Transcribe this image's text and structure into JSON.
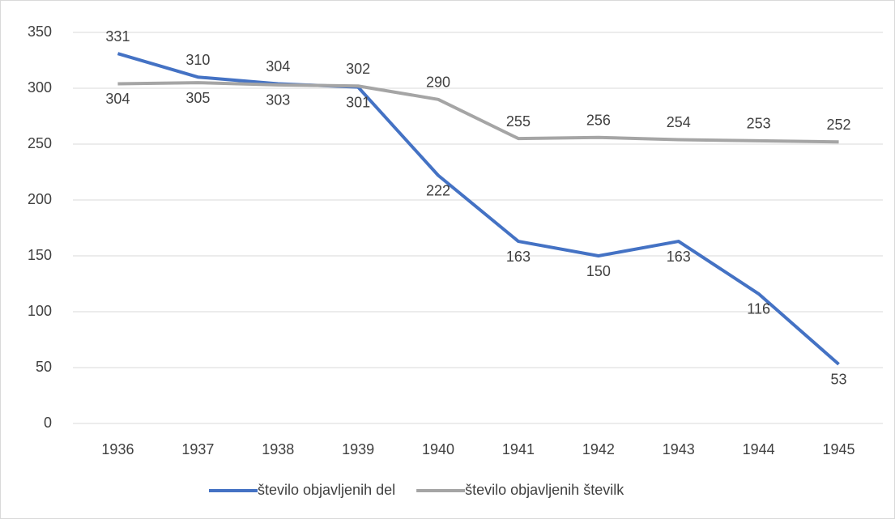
{
  "chart_data": {
    "type": "line",
    "categories": [
      "1936",
      "1937",
      "1938",
      "1939",
      "1940",
      "1941",
      "1942",
      "1943",
      "1944",
      "1945"
    ],
    "series": [
      {
        "name": "število objavljenih del",
        "color": "#4472c4",
        "values": [
          331,
          310,
          304,
          301,
          222,
          163,
          150,
          163,
          116,
          53
        ]
      },
      {
        "name": "število objavljenih številk",
        "color": "#a5a5a5",
        "values": [
          304,
          305,
          303,
          302,
          290,
          255,
          256,
          254,
          253,
          252
        ]
      }
    ],
    "ylim": [
      0,
      350
    ],
    "yticks": [
      0,
      50,
      100,
      150,
      200,
      250,
      300,
      350
    ],
    "grid": true,
    "legend": "bottom"
  }
}
